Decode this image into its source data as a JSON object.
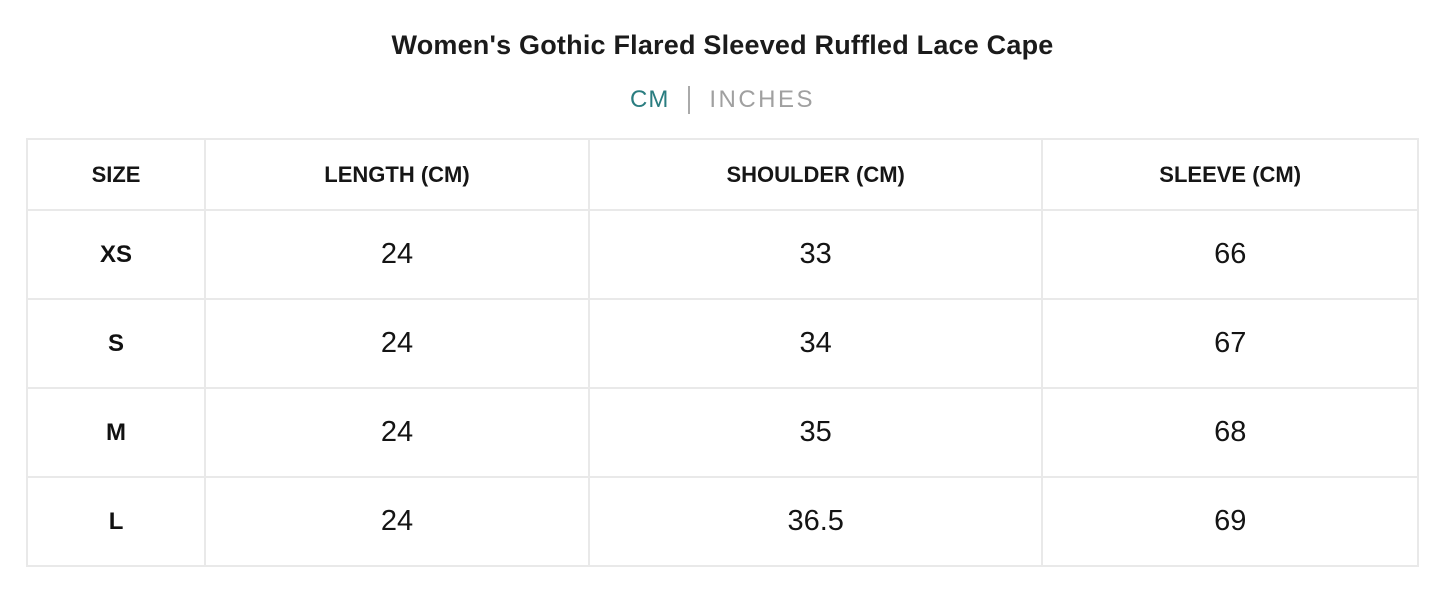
{
  "page": {
    "title": "Women's Gothic Flared Sleeved Ruffled Lace Cape"
  },
  "unit_toggle": {
    "cm_label": "CM",
    "inches_label": "INCHES",
    "active_option": "CM",
    "active_color": "#2a7d80",
    "inactive_color": "#a0a0a0",
    "divider_color": "#aaaaaa"
  },
  "size_chart": {
    "columns": [
      "SIZE",
      "LENGTH (CM)",
      "SHOULDER (CM)",
      "SLEEVE (CM)"
    ],
    "rows": [
      {
        "size": "XS",
        "values": [
          "24",
          "33",
          "66"
        ]
      },
      {
        "size": "S",
        "values": [
          "24",
          "34",
          "67"
        ]
      },
      {
        "size": "M",
        "values": [
          "24",
          "35",
          "68"
        ]
      },
      {
        "size": "L",
        "values": [
          "24",
          "36.5",
          "69"
        ]
      }
    ],
    "border_color": "#e9e9e9"
  }
}
